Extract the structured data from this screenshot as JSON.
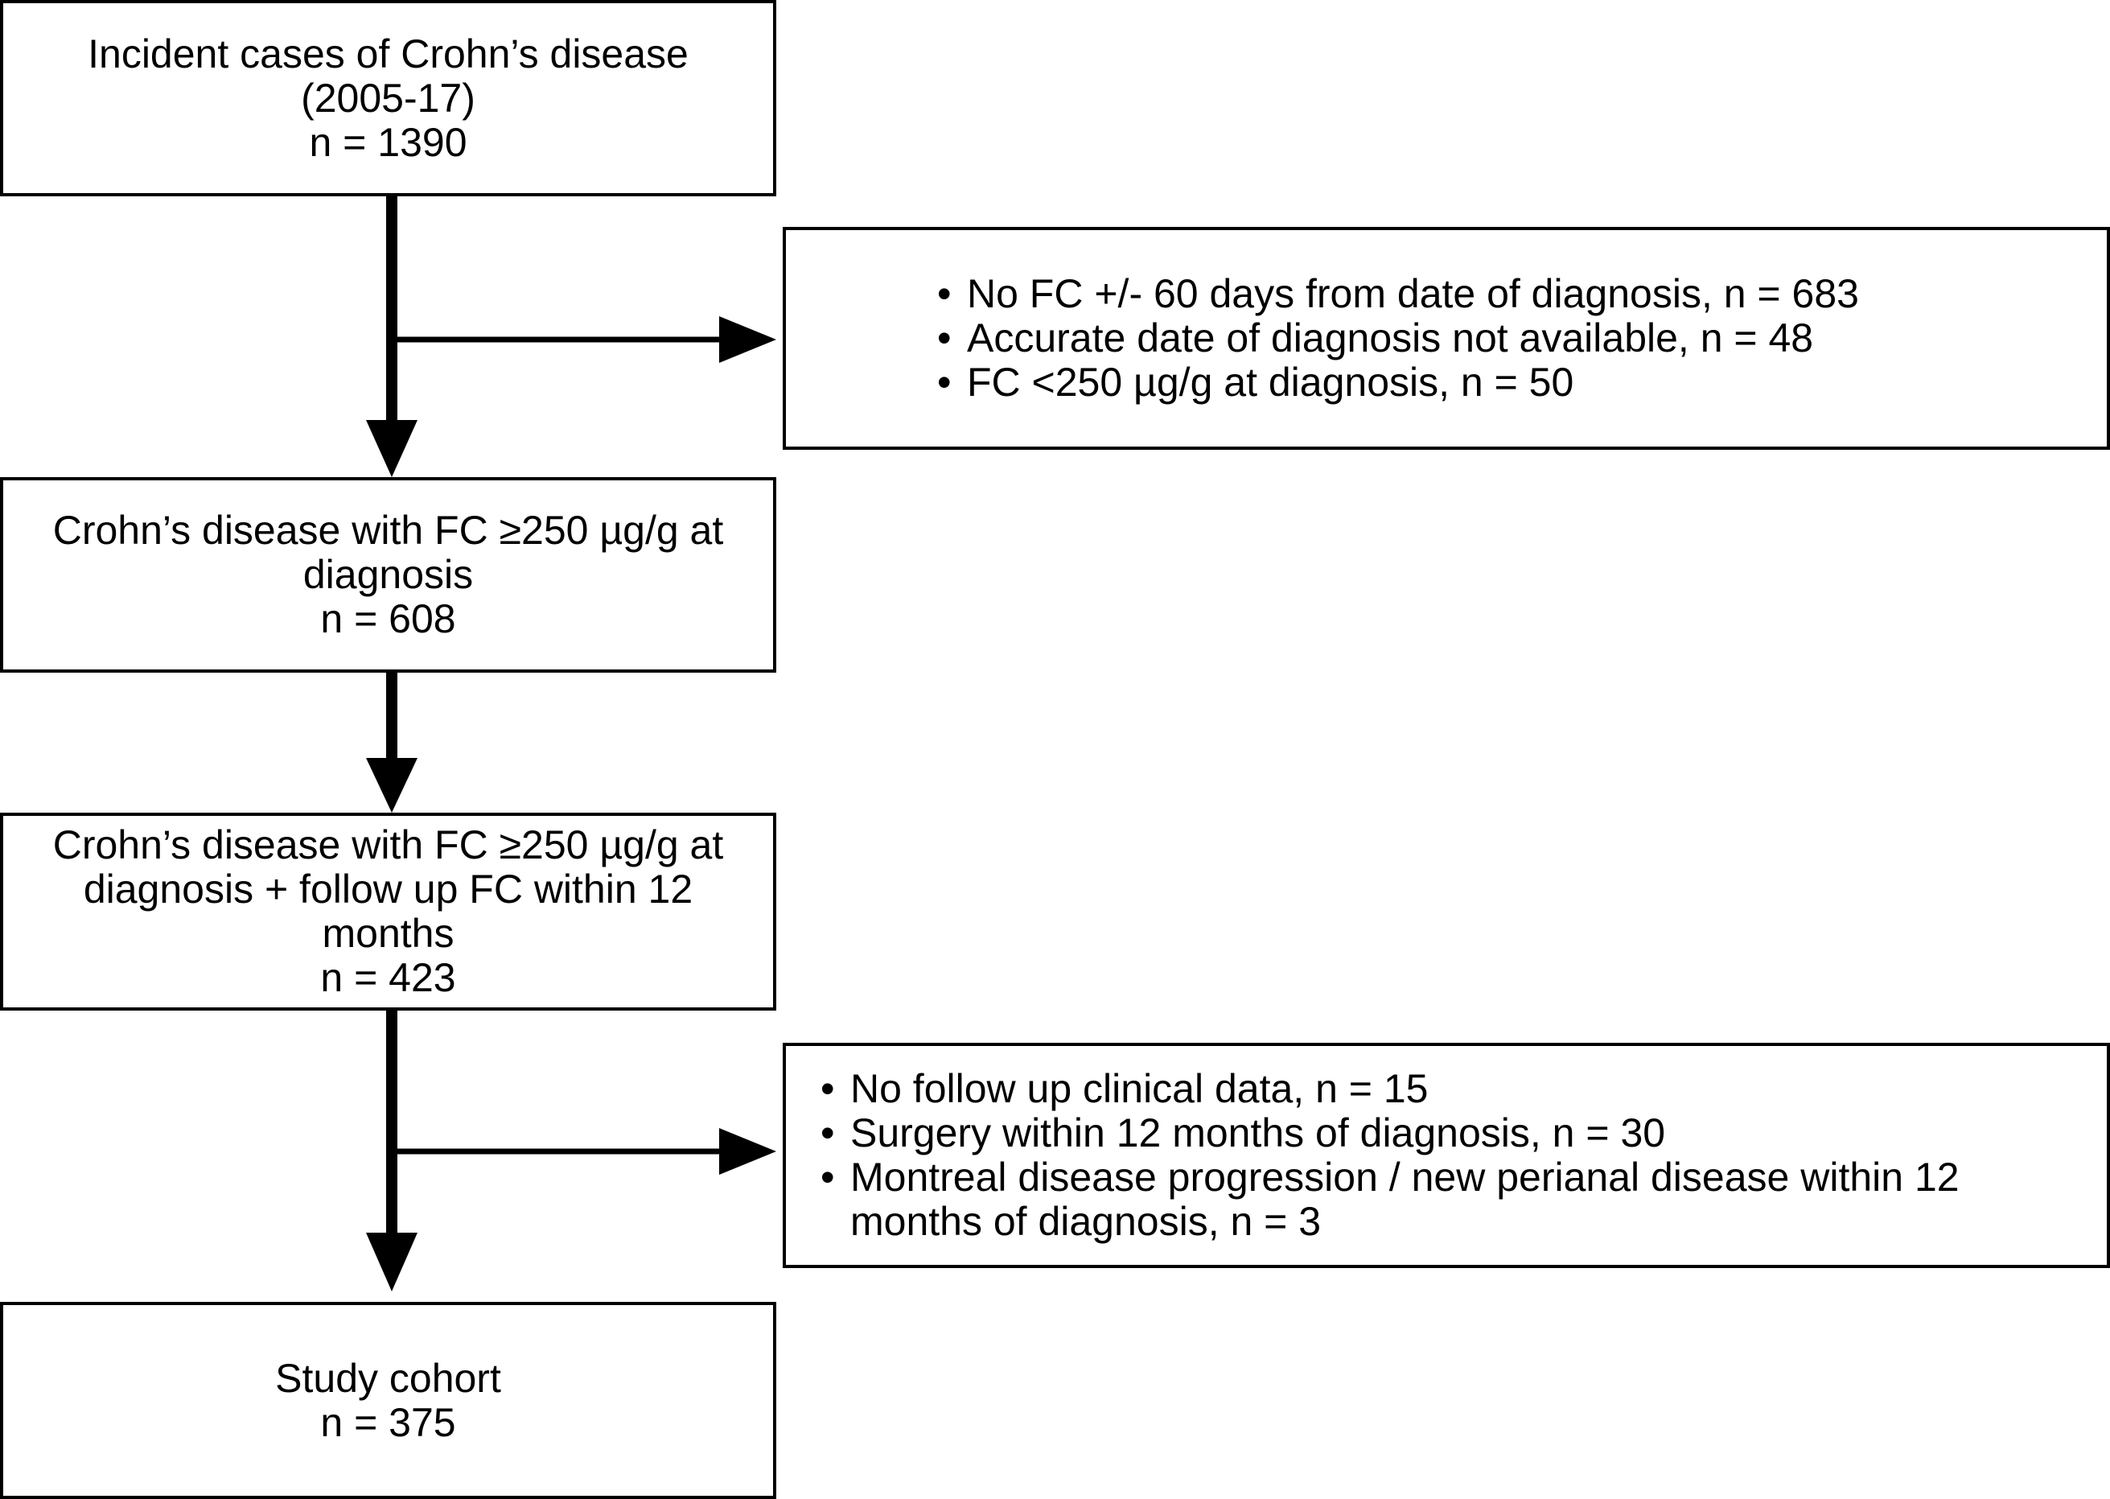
{
  "boxes": {
    "incident": {
      "line1": "Incident cases of Crohn’s disease",
      "line2": "(2005-17)",
      "line3": "n = 1390"
    },
    "fc_at_diagnosis": {
      "line1": "Crohn’s disease with FC ≥250 µg/g at",
      "line2": "diagnosis",
      "line3": "n = 608"
    },
    "fc_follow_up": {
      "line1": "Crohn’s disease with FC ≥250 µg/g at",
      "line2": "diagnosis + follow up FC within 12",
      "line3": "months",
      "line4": "n = 423"
    },
    "study_cohort": {
      "line1": "Study cohort",
      "line2": "n = 375"
    }
  },
  "exclusions": {
    "first": [
      "No FC +/- 60 days from date of diagnosis, n = 683",
      "Accurate date of diagnosis not available, n = 48",
      "FC <250 µg/g at diagnosis, n = 50"
    ],
    "second": [
      "No follow up clinical data, n = 15",
      "Surgery within 12 months of diagnosis, n = 30",
      "Montreal disease progression / new perianal disease within 12",
      "months of diagnosis, n = 3"
    ]
  }
}
